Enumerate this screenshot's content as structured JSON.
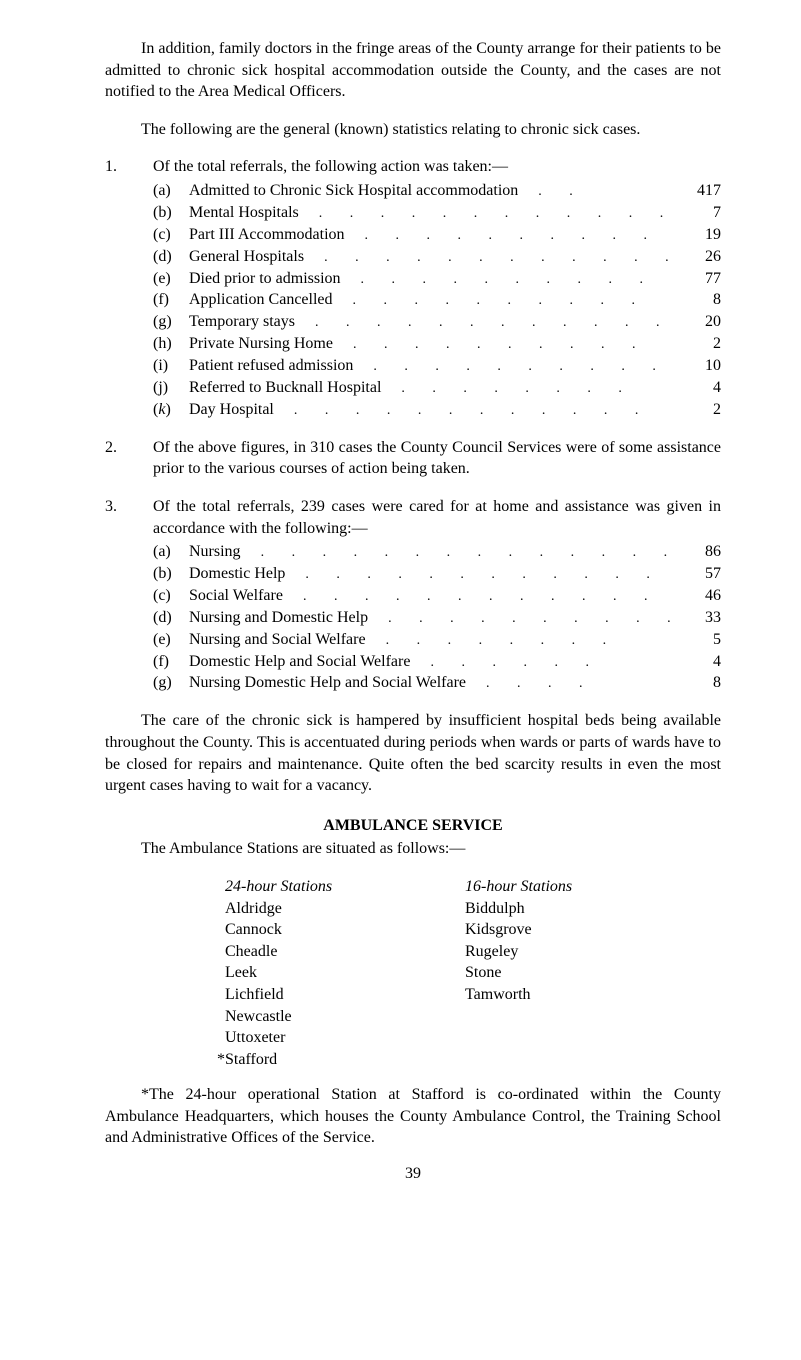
{
  "para1": "In addition, family doctors in the fringe areas of the County arrange for their patients to be admitted to chronic sick hospital accommodation outside the County, and the cases are not notified to the Area Medical Officers.",
  "para2": "The following are the general (known) statistics relating to chronic sick cases.",
  "section1": {
    "marker": "1.",
    "intro": "Of the total referrals, the following action was taken:—",
    "items": [
      {
        "marker": "(a)",
        "label": "Admitted to Chronic Sick Hospital accommodation",
        "value": "417"
      },
      {
        "marker": "(b)",
        "label": "Mental Hospitals",
        "value": "7"
      },
      {
        "marker": "(c)",
        "label": "Part III Accommodation",
        "value": "19"
      },
      {
        "marker": "(d)",
        "label": "General Hospitals",
        "value": "26"
      },
      {
        "marker": "(e)",
        "label": "Died prior to admission",
        "value": "77"
      },
      {
        "marker": "(f)",
        "label": "Application Cancelled",
        "value": "8"
      },
      {
        "marker": "(g)",
        "label": "Temporary stays",
        "value": "20"
      },
      {
        "marker": "(h)",
        "label": "Private Nursing Home",
        "value": "2"
      },
      {
        "marker": "(i)",
        "label": "Patient refused admission",
        "value": "10"
      },
      {
        "marker": "(j)",
        "label": "Referred to Bucknall Hospital",
        "value": "4"
      },
      {
        "marker_k": "(",
        "marker_k_italic": "k",
        "marker_k_close": ")",
        "label": "Day Hospital",
        "value": "2"
      }
    ]
  },
  "section2": {
    "marker": "2.",
    "text": "Of the above figures, in 310 cases the County Council Services were of some assistance prior to the various courses of action being taken."
  },
  "section3": {
    "marker": "3.",
    "intro": "Of the total referrals, 239 cases were cared for at home and assistance was given in accordance with the following:—",
    "items": [
      {
        "marker": "(a)",
        "label": "Nursing",
        "value": "86"
      },
      {
        "marker": "(b)",
        "label": "Domestic Help",
        "value": "57"
      },
      {
        "marker": "(c)",
        "label": "Social Welfare",
        "value": "46"
      },
      {
        "marker": "(d)",
        "label": "Nursing and Domestic Help",
        "value": "33"
      },
      {
        "marker": "(e)",
        "label": "Nursing and Social Welfare",
        "value": "5"
      },
      {
        "marker": "(f)",
        "label": "Domestic Help and Social Welfare",
        "value": "4"
      },
      {
        "marker": "(g)",
        "label": "Nursing Domestic Help and Social Welfare",
        "value": "8"
      }
    ]
  },
  "para3": "The care of the chronic sick is hampered by insufficient hospital beds being available throughout the County. This is accentuated during periods when wards or parts of wards have to be closed for repairs and maintenance. Quite often the bed scarcity results in even the most urgent cases having to wait for a vacancy.",
  "ambulance": {
    "heading": "AMBULANCE SERVICE",
    "intro": "The Ambulance Stations are situated as follows:—",
    "col1_header": "24-hour Stations",
    "col1": [
      "Aldridge",
      "Cannock",
      "Cheadle",
      "Leek",
      "Lichfield",
      "Newcastle",
      "Uttoxeter",
      "*Stafford"
    ],
    "col2_header": "16-hour Stations",
    "col2": [
      "Biddulph",
      "Kidsgrove",
      "Rugeley",
      "Stone",
      "Tamworth"
    ]
  },
  "footnote": "*The 24-hour operational Station at Stafford is co-ordinated within the County Ambulance Headquarters, which houses the County Ambu­lance Control, the Training School and Administrative Offices of the Service.",
  "page_number": "39",
  "dots": ". . . . . . . . . . . ."
}
